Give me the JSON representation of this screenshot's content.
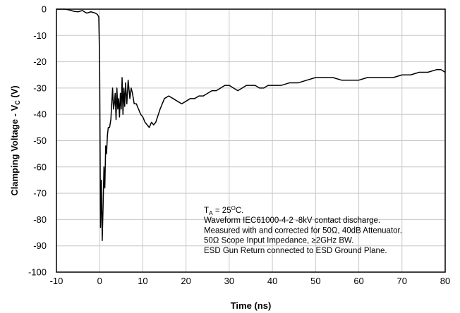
{
  "chart_data": {
    "type": "line",
    "xlabel": "Time (ns)",
    "ylabel": {
      "main": "Clamping Voltage - V",
      "sub": "C",
      "unit": " (V)"
    },
    "xlim": [
      -10,
      80
    ],
    "ylim": [
      -100,
      0
    ],
    "xticks": [
      -10,
      0,
      10,
      20,
      30,
      40,
      50,
      60,
      70,
      80
    ],
    "yticks": [
      0,
      -10,
      -20,
      -30,
      -40,
      -50,
      -60,
      -70,
      -80,
      -90,
      -100
    ],
    "grid": true,
    "annotation": {
      "line1": {
        "pre": "T",
        "sub": "A",
        "mid": " = 25",
        "sup": "O",
        "post": "C."
      },
      "lines": [
        "Waveform IEC61000-4-2 -8kV contact discharge.",
        "Measured with and corrected for 50Ω, 40dB Attenuator.",
        "50Ω Scope Input Impedance, ≥2GHz BW.",
        "ESD Gun Return connected to ESD Ground Plane."
      ]
    },
    "series": [
      {
        "color": "#000000",
        "x": [
          -10,
          -9,
          -8,
          -7,
          -6,
          -5,
          -4,
          -3,
          -2,
          -1,
          -0.5,
          -0.2,
          0,
          0.2,
          0.4,
          0.6,
          0.8,
          1.0,
          1.2,
          1.4,
          1.6,
          1.8,
          2.0,
          2.3,
          2.6,
          3.0,
          3.2,
          3.4,
          3.6,
          3.8,
          4.0,
          4.2,
          4.4,
          4.6,
          4.8,
          5.0,
          5.2,
          5.4,
          5.6,
          5.8,
          6.0,
          6.3,
          6.6,
          7.0,
          7.3,
          7.6,
          8.0,
          8.5,
          9.0,
          9.5,
          10,
          10.5,
          11,
          11.5,
          12,
          12.5,
          13,
          14,
          15,
          16,
          17,
          18,
          19,
          20,
          21,
          22,
          23,
          24,
          25,
          26,
          27,
          28,
          29,
          30,
          31,
          32,
          33,
          34,
          35,
          36,
          37,
          38,
          39,
          40,
          42,
          44,
          46,
          48,
          50,
          52,
          54,
          56,
          58,
          60,
          62,
          64,
          66,
          68,
          70,
          72,
          74,
          76,
          78,
          79,
          80
        ],
        "y": [
          0,
          0,
          0,
          -0.3,
          -0.8,
          -1,
          -0.5,
          -1.5,
          -1,
          -1.5,
          -2,
          -3,
          -20,
          -83,
          -65,
          -88,
          -75,
          -60,
          -68,
          -52,
          -55,
          -48,
          -45,
          -45,
          -42,
          -30,
          -38,
          -36,
          -32,
          -42,
          -30,
          -38,
          -34,
          -41,
          -32,
          -38,
          -26,
          -40,
          -30,
          -37,
          -28,
          -36,
          -27,
          -34,
          -30,
          -32,
          -36,
          -36,
          -38,
          -40,
          -41,
          -43,
          -44,
          -45,
          -43,
          -44,
          -43,
          -38,
          -34,
          -33,
          -34,
          -35,
          -36,
          -35,
          -34,
          -34,
          -33,
          -33,
          -32,
          -31,
          -31,
          -30,
          -29,
          -29,
          -30,
          -31,
          -30,
          -29,
          -29,
          -29,
          -30,
          -30,
          -29,
          -29,
          -29,
          -28,
          -28,
          -27,
          -26,
          -26,
          -26,
          -27,
          -27,
          -27,
          -26,
          -26,
          -26,
          -26,
          -25,
          -25,
          -24,
          -24,
          -23,
          -23,
          -24
        ]
      }
    ]
  }
}
